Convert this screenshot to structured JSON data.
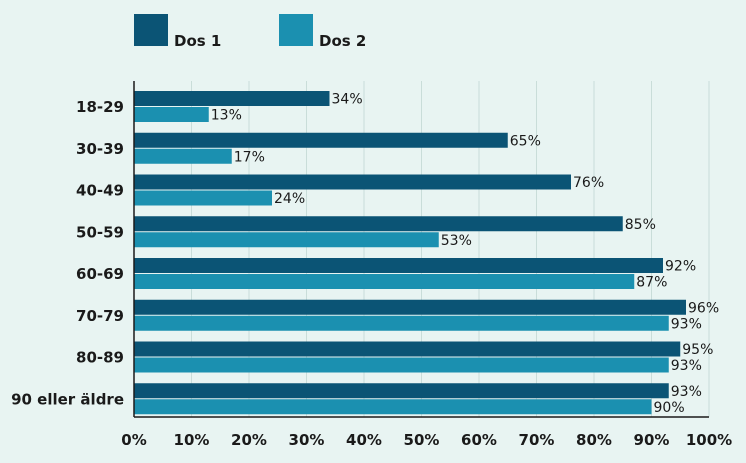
{
  "chart_data": {
    "type": "bar",
    "orientation": "horizontal",
    "title": "",
    "xlabel": "",
    "ylabel": "",
    "categories": [
      "18-29",
      "30-39",
      "40-49",
      "50-59",
      "60-69",
      "70-79",
      "80-89",
      "90 eller äldre"
    ],
    "series": [
      {
        "name": "Dos 1",
        "color": "#0b5475",
        "values": [
          34,
          65,
          76,
          85,
          92,
          96,
          95,
          93
        ],
        "labels": [
          "34%",
          "65%",
          "76%",
          "85%",
          "92%",
          "96%",
          "95%",
          "93%"
        ]
      },
      {
        "name": "Dos 2",
        "color": "#1b90b0",
        "values": [
          13,
          17,
          24,
          53,
          87,
          93,
          93,
          90
        ],
        "labels": [
          "13%",
          "17%",
          "24%",
          "53%",
          "87%",
          "93%",
          "93%",
          "90%"
        ]
      }
    ],
    "xlim": [
      0,
      100
    ],
    "xticks": [
      0,
      10,
      20,
      30,
      40,
      50,
      60,
      70,
      80,
      90,
      100
    ],
    "xtick_labels": [
      "0%",
      "10%",
      "20%",
      "30%",
      "40%",
      "50%",
      "60%",
      "70%",
      "80%",
      "90%",
      "100%"
    ],
    "grid": true,
    "legend_position": "top-left",
    "background_color": "#e8f4f2",
    "grid_color": "#c9ddd9",
    "axis_color": "#1a1a1a"
  }
}
